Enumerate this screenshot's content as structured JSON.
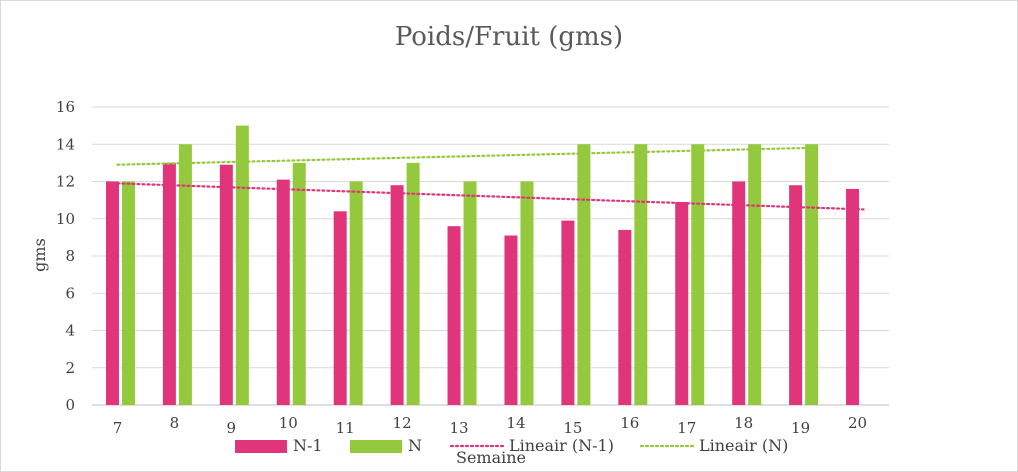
{
  "chart_data": {
    "type": "bar",
    "title": "Poids/Fruit (gms)",
    "xlabel": "Semaine",
    "ylabel": "gms",
    "ylim": [
      0,
      16
    ],
    "yticks": [
      "0",
      "2",
      "4",
      "6",
      "8",
      "10",
      "12",
      "14",
      "16"
    ],
    "grid": true,
    "legend_position": "bottom",
    "categories": [
      "7",
      "8",
      "9",
      "10",
      "11",
      "12",
      "13",
      "14",
      "15",
      "16",
      "17",
      "18",
      "19",
      "20"
    ],
    "series": [
      {
        "name": "N-1",
        "color": "#e0357a",
        "values": [
          12.0,
          13.0,
          12.9,
          12.1,
          10.4,
          11.8,
          9.6,
          9.1,
          9.9,
          9.4,
          10.9,
          12.0,
          11.8,
          11.6
        ]
      },
      {
        "name": "N",
        "color": "#95c93d",
        "values": [
          12.0,
          14.0,
          15.0,
          13.0,
          12.0,
          13.0,
          12.0,
          12.0,
          14.0,
          14.0,
          14.0,
          14.0,
          14.0,
          null
        ]
      }
    ],
    "trendlines": [
      {
        "name": "Lineair (N-1)",
        "color": "#e0357a",
        "start": 11.9,
        "end": 10.5,
        "from": "7",
        "to": "20"
      },
      {
        "name": "Lineair (N)",
        "color": "#95c93d",
        "start": 12.9,
        "end": 13.8,
        "from": "7",
        "to": "19"
      }
    ]
  }
}
